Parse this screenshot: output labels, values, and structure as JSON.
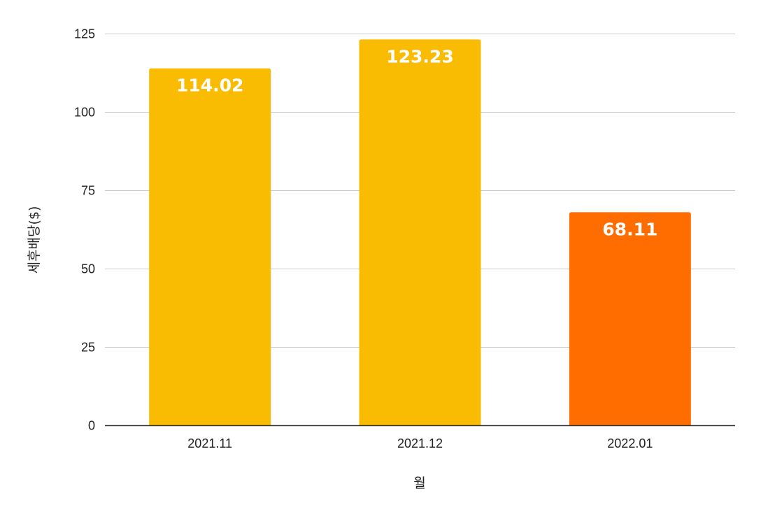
{
  "chart_data": {
    "type": "bar",
    "title": "",
    "xlabel": "월",
    "ylabel": "세후배당($)",
    "categories": [
      "2021.11",
      "2021.12",
      "2022.01"
    ],
    "values": [
      114.02,
      123.23,
      68.11
    ],
    "data_labels": [
      "114.02",
      "123.23",
      "68.11"
    ],
    "bar_colors": [
      "#F9BC02",
      "#F9BC02",
      "#FF6D01"
    ],
    "ylim": [
      0,
      125
    ],
    "yticks": [
      0,
      25,
      50,
      75,
      100,
      125
    ],
    "ytick_labels": [
      "0",
      "25",
      "50",
      "75",
      "100",
      "125"
    ],
    "grid": true,
    "legend": "none"
  }
}
